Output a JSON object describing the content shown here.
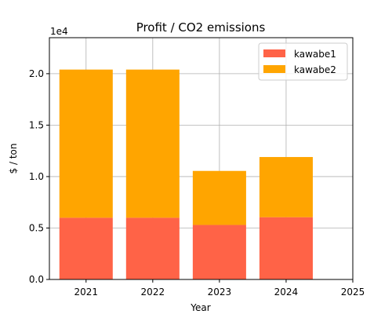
{
  "chart_data": {
    "type": "bar",
    "stacked": true,
    "title": "Profit / CO2 emissions",
    "xlabel": "Year",
    "ylabel": "$ / ton",
    "y_offset_label": "1e4",
    "categories": [
      "2021",
      "2022",
      "2023",
      "2024"
    ],
    "x_values": [
      2021,
      2022,
      2023,
      2024
    ],
    "xlim": [
      2020.45,
      2025
    ],
    "x_ticks": [
      2021,
      2022,
      2023,
      2024,
      2025
    ],
    "x_tick_labels": [
      "2021",
      "2022",
      "2023",
      "2024",
      "2025"
    ],
    "ylim": [
      0,
      23500
    ],
    "y_ticks": [
      0,
      5000,
      10000,
      15000,
      20000
    ],
    "y_tick_labels": [
      "0.0",
      "0.5",
      "1.0",
      "1.5",
      "2.0"
    ],
    "grid": true,
    "legend_position": "top-right",
    "series": [
      {
        "name": "kawabe1",
        "color": "#ff6347",
        "values": [
          6000,
          6000,
          5300,
          6050
        ]
      },
      {
        "name": "kawabe2",
        "color": "#ffa500",
        "values": [
          14400,
          14400,
          5250,
          5850
        ]
      }
    ]
  }
}
